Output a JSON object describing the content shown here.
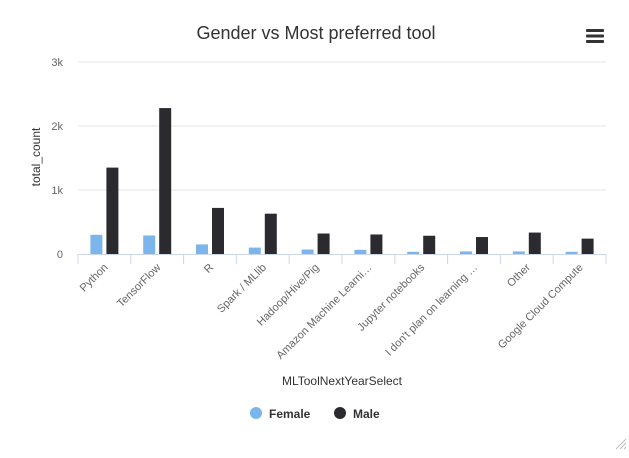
{
  "chart_data": {
    "type": "bar",
    "title": "Gender vs Most preferred tool",
    "xlabel": "MLToolNextYearSelect",
    "ylabel": "total_count",
    "ylim": [
      0,
      3000
    ],
    "yticks": [
      {
        "value": 0,
        "label": "0"
      },
      {
        "value": 1000,
        "label": "1k"
      },
      {
        "value": 2000,
        "label": "2k"
      },
      {
        "value": 3000,
        "label": "3k"
      }
    ],
    "grid": true,
    "legend_position": "bottom-center",
    "categories": [
      "Python",
      "TensorFlow",
      "R",
      "Spark / MLlib",
      "Hadoop/Hive/Pig",
      "Amazon Machine Learni…",
      "Jupyter notebooks",
      "I don't plan on learning …",
      "Other",
      "Google Cloud Compute"
    ],
    "series": [
      {
        "name": "Female",
        "color": "#7cb5ec",
        "values": [
          300,
          290,
          150,
          100,
          70,
          65,
          35,
          40,
          40,
          35
        ]
      },
      {
        "name": "Male",
        "color": "#2b2b2f",
        "values": [
          1350,
          2280,
          720,
          630,
          320,
          305,
          285,
          265,
          335,
          240
        ]
      }
    ]
  },
  "menu": {
    "icon": "hamburger-menu-icon"
  }
}
